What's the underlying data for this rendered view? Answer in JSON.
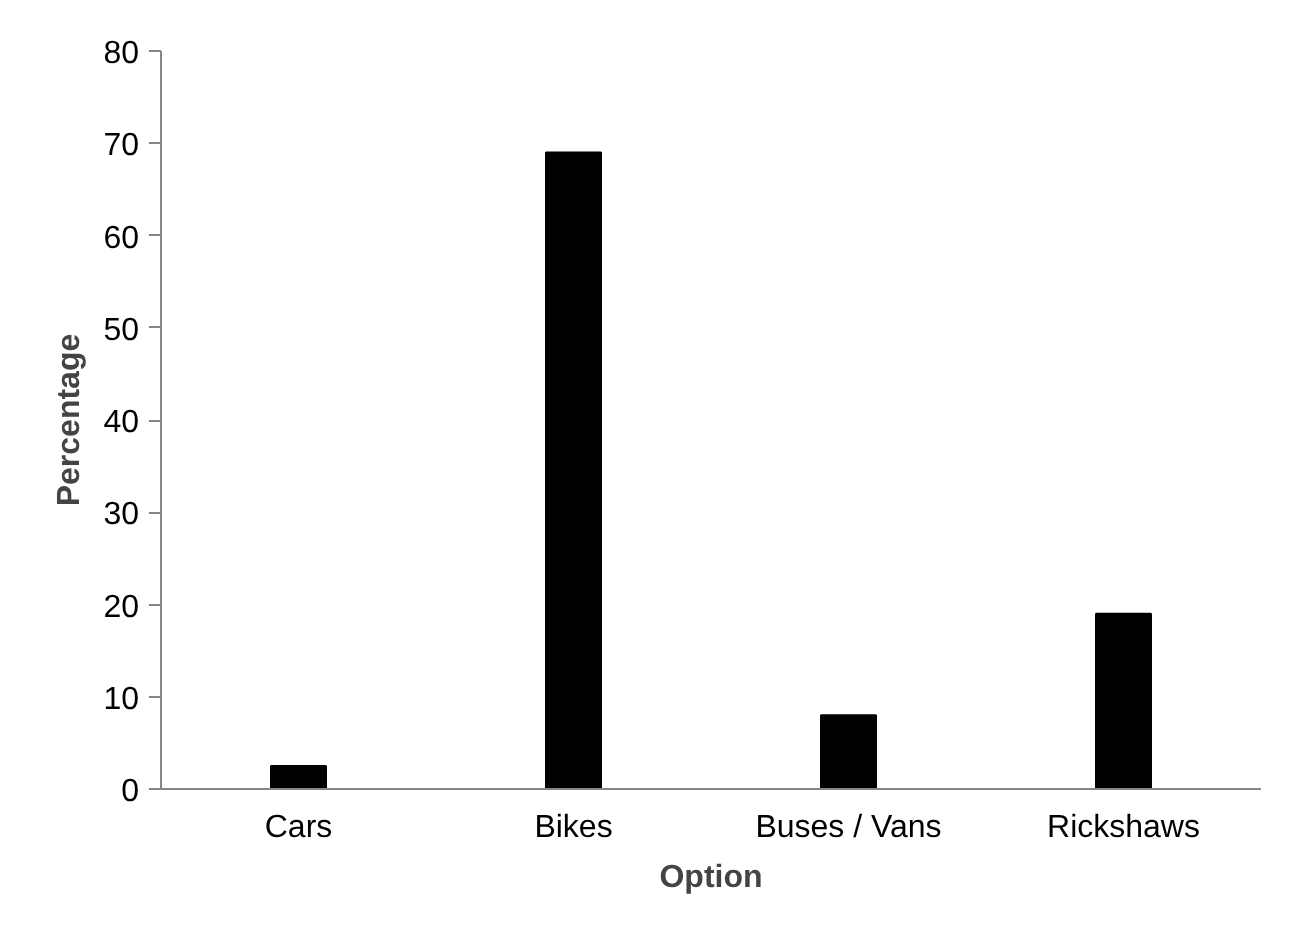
{
  "chart_data": {
    "type": "bar",
    "xlabel": "Option",
    "ylabel": "Percentage",
    "categories": [
      "Cars",
      "Bikes",
      "Buses / Vans",
      "Rickshaws"
    ],
    "values": [
      2.5,
      69,
      8,
      19
    ],
    "color": "#000000",
    "ylim": [
      0,
      80
    ],
    "yticks": [
      0,
      10,
      20,
      30,
      40,
      50,
      60,
      70,
      80
    ],
    "grid": false
  }
}
